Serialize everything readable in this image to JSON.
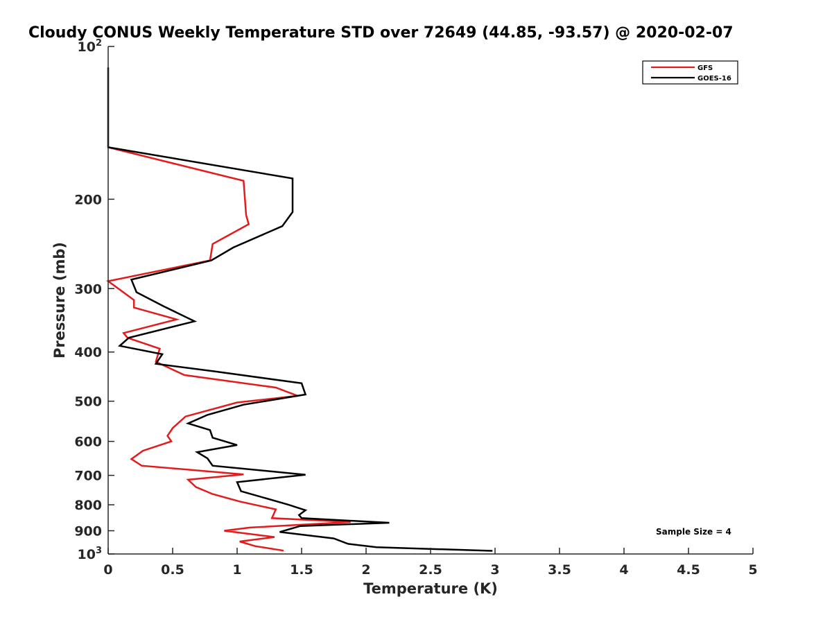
{
  "chart_data": {
    "type": "line",
    "title": "Cloudy CONUS Weekly Temperature STD over 72649 (44.85, -93.57) @ 2020-02-07",
    "xlabel": "Temperature (K)",
    "ylabel": "Pressure (mb)",
    "xlim": [
      0,
      5
    ],
    "ylim": [
      100,
      1000
    ],
    "y_scale": "log",
    "y_reversed": true,
    "grid": false,
    "legend_position": "top-right",
    "x_ticks": [
      "0",
      "0.5",
      "1",
      "1.5",
      "2",
      "2.5",
      "3",
      "3.5",
      "4",
      "4.5",
      "5"
    ],
    "y_ticks": [
      {
        "value": 100,
        "base": "10",
        "exp": "2"
      },
      {
        "value": 200,
        "label": "200"
      },
      {
        "value": 300,
        "label": "300"
      },
      {
        "value": 400,
        "label": "400"
      },
      {
        "value": 500,
        "label": "500"
      },
      {
        "value": 600,
        "label": "600"
      },
      {
        "value": 700,
        "label": "700"
      },
      {
        "value": 800,
        "label": "800"
      },
      {
        "value": 900,
        "label": "900"
      },
      {
        "value": 1000,
        "base": "10",
        "exp": "3"
      }
    ],
    "annotation": "Sample Size = 4",
    "series": [
      {
        "name": "GFS",
        "color": "#e41a1c",
        "points": [
          [
            0,
            158
          ],
          [
            1.05,
            184
          ],
          [
            1.07,
            215
          ],
          [
            1.09,
            224
          ],
          [
            0.81,
            245
          ],
          [
            0.79,
            264
          ],
          [
            0,
            290
          ],
          [
            0.2,
            316
          ],
          [
            0.2,
            327
          ],
          [
            0.53,
            345
          ],
          [
            0.12,
            367
          ],
          [
            0.15,
            375
          ],
          [
            0.4,
            394
          ],
          [
            0.37,
            418
          ],
          [
            0.59,
            444
          ],
          [
            1.3,
            470
          ],
          [
            1.47,
            488
          ],
          [
            1.0,
            503
          ],
          [
            0.6,
            536
          ],
          [
            0.5,
            565
          ],
          [
            0.46,
            585
          ],
          [
            0.49,
            600
          ],
          [
            0.27,
            626
          ],
          [
            0.18,
            650
          ],
          [
            0.26,
            670
          ],
          [
            1.05,
            697
          ],
          [
            0.62,
            714
          ],
          [
            0.68,
            738
          ],
          [
            0.81,
            762
          ],
          [
            1.02,
            788
          ],
          [
            1.3,
            817
          ],
          [
            1.27,
            850
          ],
          [
            1.88,
            865
          ],
          [
            1.1,
            887
          ],
          [
            0.9,
            900
          ],
          [
            1.29,
            926
          ],
          [
            1.02,
            945
          ],
          [
            1.14,
            965
          ],
          [
            1.36,
            985
          ]
        ]
      },
      {
        "name": "GOES-16",
        "color": "#000000",
        "points": [
          [
            0,
            110
          ],
          [
            0,
            158
          ],
          [
            1.43,
            182
          ],
          [
            1.43,
            212
          ],
          [
            1.35,
            226
          ],
          [
            0.97,
            249
          ],
          [
            0.8,
            264
          ],
          [
            0.18,
            288
          ],
          [
            0.22,
            305
          ],
          [
            0.43,
            325
          ],
          [
            0.67,
            348
          ],
          [
            0.16,
            375
          ],
          [
            0.09,
            389
          ],
          [
            0.42,
            404
          ],
          [
            0.37,
            422
          ],
          [
            0.83,
            437
          ],
          [
            1.5,
            461
          ],
          [
            1.53,
            485
          ],
          [
            1.05,
            508
          ],
          [
            0.77,
            532
          ],
          [
            0.62,
            553
          ],
          [
            0.79,
            570
          ],
          [
            0.81,
            590
          ],
          [
            1.0,
            610
          ],
          [
            0.69,
            630
          ],
          [
            0.77,
            648
          ],
          [
            0.81,
            670
          ],
          [
            1.53,
            698
          ],
          [
            1.0,
            722
          ],
          [
            1.03,
            752
          ],
          [
            1.4,
            800
          ],
          [
            1.53,
            820
          ],
          [
            1.48,
            838
          ],
          [
            1.5,
            850
          ],
          [
            2.18,
            868
          ],
          [
            1.49,
            881
          ],
          [
            1.33,
            905
          ],
          [
            1.75,
            932
          ],
          [
            1.86,
            955
          ],
          [
            2.08,
            970
          ],
          [
            2.98,
            986
          ]
        ]
      }
    ]
  }
}
